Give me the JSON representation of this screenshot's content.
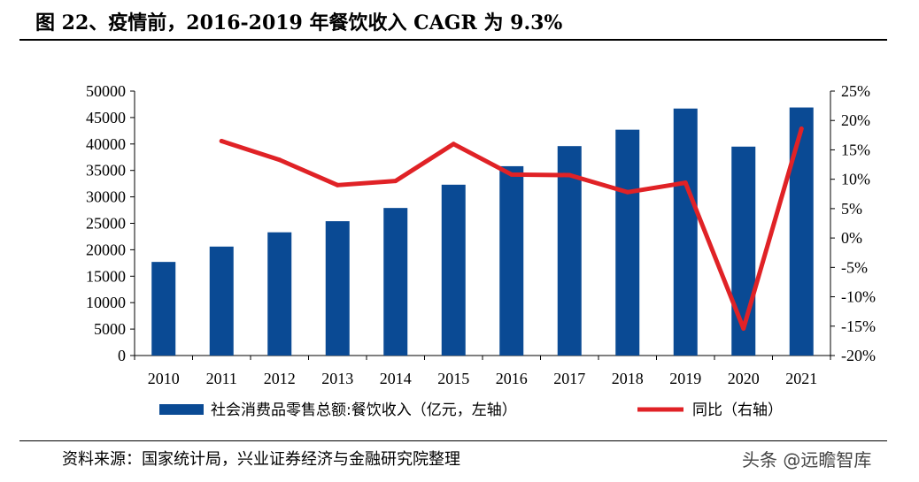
{
  "header": {
    "title": "图 22、疫情前，2016-2019 年餐饮收入 CAGR 为 9.3%"
  },
  "footer": {
    "source": "资料来源：国家统计局，兴业证券经济与金融研究院整理",
    "watermark": "头条 @远瞻智库"
  },
  "colors": {
    "bar": "#0a4a94",
    "line": "#e02226"
  },
  "chart_data": {
    "type": "bar",
    "title": "图 22、疫情前，2016-2019 年餐饮收入 CAGR 为 9.3%",
    "categories": [
      "2010",
      "2011",
      "2012",
      "2013",
      "2014",
      "2015",
      "2016",
      "2017",
      "2018",
      "2019",
      "2020",
      "2021"
    ],
    "series": [
      {
        "name": "社会消费品零售总额:餐饮收入（亿元，左轴）",
        "type": "bar",
        "axis": "left",
        "values": [
          17700,
          20600,
          23300,
          25400,
          27900,
          32300,
          35800,
          39600,
          42700,
          46700,
          39500,
          46900
        ]
      },
      {
        "name": "同比（右轴）",
        "type": "line",
        "axis": "right",
        "values": [
          null,
          16.5,
          13.3,
          9.0,
          9.7,
          16.0,
          10.8,
          10.7,
          7.8,
          9.4,
          -15.4,
          18.6
        ]
      }
    ],
    "y_left": {
      "ylim": [
        0,
        50000
      ],
      "ticks": [
        "0",
        "5000",
        "10000",
        "15000",
        "20000",
        "25000",
        "30000",
        "35000",
        "40000",
        "45000",
        "50000"
      ]
    },
    "y_right": {
      "ylim": [
        -20,
        25
      ],
      "ticks": [
        "-20%",
        "-15%",
        "-10%",
        "-5%",
        "0%",
        "5%",
        "10%",
        "15%",
        "20%",
        "25%"
      ]
    },
    "legend": {
      "position": "bottom",
      "bar_label": "社会消费品零售总额:餐饮收入（亿元，左轴）",
      "line_label": "同比（右轴）"
    }
  }
}
